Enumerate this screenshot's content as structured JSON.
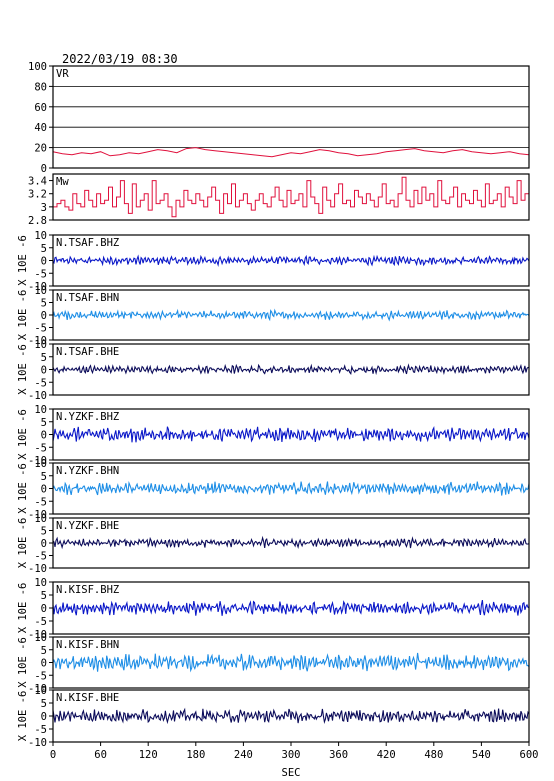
{
  "title": "2022/03/19 08:30",
  "colors": {
    "vr": "#e0103c",
    "mw": "#e0103c",
    "bhz": "#0a17c8",
    "bhn": "#1e8ee6",
    "bhe": "#0c0c5a"
  },
  "chart_data": [
    {
      "type": "line",
      "name": "VR",
      "label": "VR",
      "xlim": [
        0,
        600
      ],
      "ylim": [
        0,
        100
      ],
      "yticks": [
        0,
        20,
        40,
        60,
        80,
        100
      ],
      "grid": true,
      "x_start": 0,
      "x_step": 12,
      "values": [
        16,
        14,
        13,
        15,
        14,
        16,
        12,
        13,
        15,
        14,
        16,
        18,
        17,
        15,
        19,
        20,
        18,
        17,
        16,
        15,
        14,
        13,
        12,
        11,
        13,
        15,
        14,
        16,
        18,
        17,
        15,
        14,
        12,
        13,
        14,
        16,
        17,
        18,
        19,
        17,
        16,
        15,
        17,
        18,
        16,
        15,
        14,
        15,
        16,
        14,
        13
      ]
    },
    {
      "type": "line",
      "name": "Mw",
      "label": "Mw",
      "xlim": [
        0,
        600
      ],
      "ylim": [
        2.8,
        3.5
      ],
      "yticks": [
        2.8,
        3.0,
        3.2,
        3.4
      ],
      "grid": false,
      "x_start": 0,
      "x_step": 5,
      "values": [
        3.0,
        3.05,
        3.1,
        3.0,
        2.95,
        3.2,
        3.05,
        3.0,
        3.25,
        3.1,
        3.0,
        3.2,
        3.05,
        3.1,
        3.3,
        3.0,
        3.15,
        3.4,
        3.05,
        2.9,
        3.35,
        3.0,
        3.1,
        3.2,
        2.95,
        3.4,
        3.05,
        3.1,
        3.2,
        3.0,
        2.85,
        3.1,
        3.0,
        3.25,
        3.1,
        3.05,
        3.2,
        3.1,
        3.0,
        3.15,
        3.3,
        3.1,
        2.9,
        3.2,
        3.05,
        3.35,
        3.0,
        3.1,
        3.2,
        3.05,
        2.95,
        3.1,
        3.2,
        3.05,
        3.0,
        3.15,
        3.3,
        3.1,
        3.0,
        3.25,
        3.05,
        3.1,
        3.2,
        3.0,
        3.4,
        3.15,
        3.05,
        2.9,
        3.3,
        3.1,
        3.0,
        3.2,
        3.35,
        3.05,
        3.1,
        3.0,
        3.25,
        3.15,
        3.05,
        3.2,
        3.1,
        3.0,
        3.15,
        3.35,
        3.05,
        3.1,
        3.0,
        3.2,
        3.45,
        3.1,
        3.0,
        3.25,
        3.05,
        3.3,
        3.1,
        3.2,
        3.0,
        3.4,
        3.1,
        3.05,
        3.15,
        3.3,
        3.0,
        3.2,
        3.1,
        3.05,
        3.25,
        3.1,
        3.0,
        3.35,
        3.05,
        3.1,
        3.2,
        3.0,
        3.3,
        3.15,
        3.05,
        3.4,
        3.1,
        3.2,
        3.0
      ]
    },
    {
      "type": "line",
      "name": "N.TSAF.BHZ",
      "label": "N.TSAF.BHZ",
      "component": "bhz",
      "xlim": [
        0,
        600
      ],
      "ylim": [
        -10,
        10
      ],
      "yticks": [
        -10,
        -5,
        0,
        5,
        10
      ],
      "amplitude": 1.6
    },
    {
      "type": "line",
      "name": "N.TSAF.BHN",
      "label": "N.TSAF.BHN",
      "component": "bhn",
      "xlim": [
        0,
        600
      ],
      "ylim": [
        -10,
        10
      ],
      "yticks": [
        -10,
        -5,
        0,
        5,
        10
      ],
      "amplitude": 1.6
    },
    {
      "type": "line",
      "name": "N.TSAF.BHE",
      "label": "N.TSAF.BHE",
      "component": "bhe",
      "xlim": [
        0,
        600
      ],
      "ylim": [
        -10,
        10
      ],
      "yticks": [
        -10,
        -5,
        0,
        5,
        10
      ],
      "amplitude": 1.4
    },
    {
      "type": "line",
      "name": "N.YZKF.BHZ",
      "label": "N.YZKF.BHZ",
      "component": "bhz",
      "xlim": [
        0,
        600
      ],
      "ylim": [
        -10,
        10
      ],
      "yticks": [
        -10,
        -5,
        0,
        5,
        10
      ],
      "amplitude": 2.6
    },
    {
      "type": "line",
      "name": "N.YZKF.BHN",
      "label": "N.YZKF.BHN",
      "component": "bhn",
      "xlim": [
        0,
        600
      ],
      "ylim": [
        -10,
        10
      ],
      "yticks": [
        -10,
        -5,
        0,
        5,
        10
      ],
      "amplitude": 2.2
    },
    {
      "type": "line",
      "name": "N.YZKF.BHE",
      "label": "N.YZKF.BHE",
      "component": "bhe",
      "xlim": [
        0,
        600
      ],
      "ylim": [
        -10,
        10
      ],
      "yticks": [
        -10,
        -5,
        0,
        5,
        10
      ],
      "amplitude": 1.6
    },
    {
      "type": "line",
      "name": "N.KISF.BHZ",
      "label": "N.KISF.BHZ",
      "component": "bhz",
      "xlim": [
        0,
        600
      ],
      "ylim": [
        -10,
        10
      ],
      "yticks": [
        -10,
        -5,
        0,
        5,
        10
      ],
      "amplitude": 2.4
    },
    {
      "type": "line",
      "name": "N.KISF.BHN",
      "label": "N.KISF.BHN",
      "component": "bhn",
      "xlim": [
        0,
        600
      ],
      "ylim": [
        -10,
        10
      ],
      "yticks": [
        -10,
        -5,
        0,
        5,
        10
      ],
      "amplitude": 3.0
    },
    {
      "type": "line",
      "name": "N.KISF.BHE",
      "label": "N.KISF.BHE",
      "component": "bhe",
      "xlim": [
        0,
        600
      ],
      "ylim": [
        -10,
        10
      ],
      "yticks": [
        -10,
        -5,
        0,
        5,
        10
      ],
      "amplitude": 2.4
    }
  ],
  "wave_ylabel": "X 10E -6",
  "xticks": [
    0,
    60,
    120,
    180,
    240,
    300,
    360,
    420,
    480,
    540,
    600
  ],
  "xlabel": "SEC"
}
